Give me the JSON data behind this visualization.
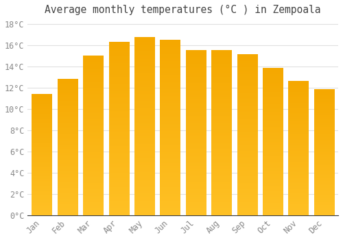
{
  "title": "Average monthly temperatures (°C ) in Zempoala",
  "months": [
    "Jan",
    "Feb",
    "Mar",
    "Apr",
    "May",
    "Jun",
    "Jul",
    "Aug",
    "Sep",
    "Oct",
    "Nov",
    "Dec"
  ],
  "values": [
    11.4,
    12.8,
    15.0,
    16.3,
    16.7,
    16.5,
    15.5,
    15.5,
    15.1,
    13.8,
    12.6,
    11.8
  ],
  "bar_color_top": "#FFC125",
  "bar_color_bottom": "#F5A800",
  "background_color": "#FFFFFF",
  "plot_bg_color": "#FFFFFF",
  "grid_color": "#E0E0E0",
  "text_color": "#888888",
  "axis_color": "#333333",
  "ylim": [
    0,
    18
  ],
  "ytick_step": 2,
  "title_fontsize": 10.5,
  "tick_fontsize": 8.5
}
